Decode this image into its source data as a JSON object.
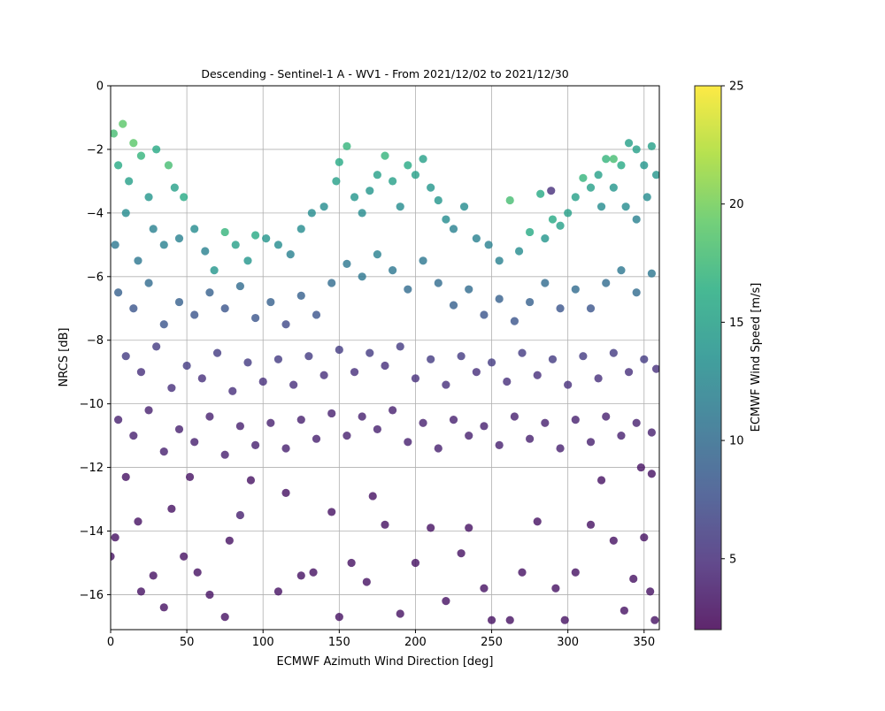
{
  "chart_data": {
    "type": "scatter",
    "title": "Descending - Sentinel-1 A - WV1 - From 2021/12/02 to 2021/12/30",
    "xlabel": "ECMWF Azimuth Wind Direction [deg]",
    "ylabel": "NRCS [dB]",
    "xlim": [
      0,
      360
    ],
    "ylim": [
      -17.1,
      0
    ],
    "xticks": [
      "0",
      "50",
      "100",
      "150",
      "200",
      "250",
      "300",
      "350"
    ],
    "yticks": [
      "0",
      "−2",
      "−4",
      "−6",
      "−8",
      "−10",
      "−12",
      "−14",
      "−16"
    ],
    "grid": true,
    "colormap": "viridis",
    "marker_alpha": 0.8,
    "colorbar": {
      "label": "ECMWF Wind Speed [m/s]",
      "range": [
        2,
        25
      ],
      "ticks": [
        "5",
        "10",
        "15",
        "20",
        "25"
      ]
    },
    "points": [
      [
        2,
        -1.5,
        18
      ],
      [
        8,
        -1.2,
        19
      ],
      [
        15,
        -1.8,
        19
      ],
      [
        5,
        -2.5,
        16
      ],
      [
        20,
        -2.2,
        17
      ],
      [
        12,
        -3.0,
        15
      ],
      [
        25,
        -3.5,
        14
      ],
      [
        30,
        -2.0,
        16
      ],
      [
        38,
        -2.5,
        18
      ],
      [
        42,
        -3.2,
        15
      ],
      [
        48,
        -3.5,
        16
      ],
      [
        10,
        -4.0,
        13
      ],
      [
        3,
        -5.0,
        11
      ],
      [
        18,
        -5.5,
        11
      ],
      [
        28,
        -4.5,
        12
      ],
      [
        35,
        -5.0,
        12
      ],
      [
        45,
        -4.8,
        12
      ],
      [
        55,
        -4.5,
        13
      ],
      [
        62,
        -5.2,
        12
      ],
      [
        68,
        -5.8,
        14
      ],
      [
        75,
        -4.6,
        17
      ],
      [
        82,
        -5.0,
        15
      ],
      [
        90,
        -5.5,
        14
      ],
      [
        95,
        -4.7,
        16
      ],
      [
        102,
        -4.8,
        14
      ],
      [
        110,
        -5.0,
        13
      ],
      [
        118,
        -5.3,
        12
      ],
      [
        125,
        -4.5,
        13
      ],
      [
        132,
        -4.0,
        13
      ],
      [
        140,
        -3.8,
        13
      ],
      [
        148,
        -3.0,
        15
      ],
      [
        150,
        -2.4,
        16
      ],
      [
        155,
        -1.9,
        17
      ],
      [
        160,
        -3.5,
        14
      ],
      [
        165,
        -4.0,
        13
      ],
      [
        170,
        -3.3,
        14
      ],
      [
        175,
        -2.8,
        15
      ],
      [
        180,
        -2.2,
        17
      ],
      [
        185,
        -3.0,
        15
      ],
      [
        190,
        -3.8,
        13
      ],
      [
        195,
        -2.5,
        16
      ],
      [
        200,
        -2.8,
        15
      ],
      [
        205,
        -2.3,
        15
      ],
      [
        210,
        -3.2,
        14
      ],
      [
        215,
        -3.6,
        14
      ],
      [
        220,
        -4.2,
        13
      ],
      [
        225,
        -4.5,
        12
      ],
      [
        232,
        -3.8,
        13
      ],
      [
        240,
        -4.8,
        12
      ],
      [
        248,
        -5.0,
        12
      ],
      [
        255,
        -5.5,
        12
      ],
      [
        262,
        -3.6,
        18
      ],
      [
        268,
        -5.2,
        13
      ],
      [
        275,
        -4.6,
        16
      ],
      [
        282,
        -3.4,
        16
      ],
      [
        285,
        -4.8,
        14
      ],
      [
        290,
        -4.2,
        16
      ],
      [
        295,
        -4.4,
        15
      ],
      [
        300,
        -4.0,
        15
      ],
      [
        305,
        -3.5,
        15
      ],
      [
        310,
        -2.9,
        17
      ],
      [
        315,
        -3.2,
        15
      ],
      [
        320,
        -2.8,
        15
      ],
      [
        325,
        -2.3,
        17
      ],
      [
        330,
        -2.3,
        18
      ],
      [
        335,
        -2.5,
        16
      ],
      [
        340,
        -1.8,
        15
      ],
      [
        345,
        -2.0,
        15
      ],
      [
        350,
        -2.5,
        14
      ],
      [
        355,
        -1.9,
        15
      ],
      [
        358,
        -2.8,
        14
      ],
      [
        352,
        -3.5,
        13
      ],
      [
        345,
        -4.2,
        12
      ],
      [
        338,
        -3.8,
        13
      ],
      [
        330,
        -3.2,
        14
      ],
      [
        322,
        -3.8,
        13
      ],
      [
        289,
        -3.3,
        5
      ],
      [
        5,
        -6.5,
        9
      ],
      [
        15,
        -7.0,
        8
      ],
      [
        25,
        -6.2,
        10
      ],
      [
        35,
        -7.5,
        8
      ],
      [
        45,
        -6.8,
        9
      ],
      [
        55,
        -7.2,
        8
      ],
      [
        65,
        -6.5,
        9
      ],
      [
        75,
        -7.0,
        8
      ],
      [
        85,
        -6.3,
        10
      ],
      [
        95,
        -7.3,
        8
      ],
      [
        105,
        -6.8,
        9
      ],
      [
        115,
        -7.5,
        7
      ],
      [
        125,
        -6.6,
        9
      ],
      [
        135,
        -7.2,
        8
      ],
      [
        145,
        -6.2,
        10
      ],
      [
        155,
        -5.6,
        11
      ],
      [
        165,
        -6.0,
        11
      ],
      [
        175,
        -5.3,
        12
      ],
      [
        185,
        -5.8,
        11
      ],
      [
        195,
        -6.4,
        10
      ],
      [
        205,
        -5.5,
        11
      ],
      [
        215,
        -6.2,
        10
      ],
      [
        225,
        -6.9,
        9
      ],
      [
        235,
        -6.4,
        10
      ],
      [
        245,
        -7.2,
        8
      ],
      [
        255,
        -6.7,
        9
      ],
      [
        265,
        -7.4,
        8
      ],
      [
        275,
        -6.8,
        9
      ],
      [
        285,
        -6.2,
        10
      ],
      [
        295,
        -7.0,
        8
      ],
      [
        305,
        -6.4,
        10
      ],
      [
        315,
        -7.0,
        8
      ],
      [
        325,
        -6.2,
        10
      ],
      [
        335,
        -5.8,
        11
      ],
      [
        345,
        -6.5,
        10
      ],
      [
        355,
        -5.9,
        11
      ],
      [
        10,
        -8.5,
        6
      ],
      [
        20,
        -9.0,
        5
      ],
      [
        30,
        -8.2,
        6
      ],
      [
        40,
        -9.5,
        5
      ],
      [
        50,
        -8.8,
        6
      ],
      [
        60,
        -9.2,
        5
      ],
      [
        70,
        -8.4,
        6
      ],
      [
        80,
        -9.6,
        5
      ],
      [
        90,
        -8.7,
        6
      ],
      [
        100,
        -9.3,
        5
      ],
      [
        110,
        -8.6,
        6
      ],
      [
        120,
        -9.4,
        5
      ],
      [
        130,
        -8.5,
        6
      ],
      [
        140,
        -9.1,
        5
      ],
      [
        150,
        -8.3,
        6
      ],
      [
        160,
        -9.0,
        5
      ],
      [
        170,
        -8.4,
        6
      ],
      [
        180,
        -8.8,
        5
      ],
      [
        190,
        -8.2,
        6
      ],
      [
        200,
        -9.2,
        5
      ],
      [
        210,
        -8.6,
        6
      ],
      [
        220,
        -9.4,
        5
      ],
      [
        230,
        -8.5,
        6
      ],
      [
        240,
        -9.0,
        5
      ],
      [
        250,
        -8.7,
        6
      ],
      [
        260,
        -9.3,
        5
      ],
      [
        270,
        -8.4,
        6
      ],
      [
        280,
        -9.1,
        5
      ],
      [
        290,
        -8.6,
        6
      ],
      [
        300,
        -9.4,
        5
      ],
      [
        310,
        -8.5,
        6
      ],
      [
        320,
        -9.2,
        5
      ],
      [
        330,
        -8.4,
        6
      ],
      [
        340,
        -9.0,
        5
      ],
      [
        350,
        -8.6,
        6
      ],
      [
        358,
        -8.9,
        5
      ],
      [
        5,
        -10.5,
        4
      ],
      [
        15,
        -11.0,
        4
      ],
      [
        25,
        -10.2,
        4
      ],
      [
        35,
        -11.5,
        4
      ],
      [
        45,
        -10.8,
        4
      ],
      [
        55,
        -11.2,
        4
      ],
      [
        65,
        -10.4,
        4
      ],
      [
        75,
        -11.6,
        4
      ],
      [
        85,
        -10.7,
        4
      ],
      [
        95,
        -11.3,
        4
      ],
      [
        105,
        -10.6,
        4
      ],
      [
        115,
        -11.4,
        4
      ],
      [
        125,
        -10.5,
        4
      ],
      [
        135,
        -11.1,
        4
      ],
      [
        145,
        -10.3,
        4
      ],
      [
        155,
        -11.0,
        4
      ],
      [
        165,
        -10.4,
        4
      ],
      [
        175,
        -10.8,
        4
      ],
      [
        185,
        -10.2,
        4
      ],
      [
        195,
        -11.2,
        4
      ],
      [
        205,
        -10.6,
        4
      ],
      [
        215,
        -11.4,
        4
      ],
      [
        225,
        -10.5,
        4
      ],
      [
        235,
        -11.0,
        4
      ],
      [
        245,
        -10.7,
        4
      ],
      [
        255,
        -11.3,
        4
      ],
      [
        265,
        -10.4,
        4
      ],
      [
        275,
        -11.1,
        4
      ],
      [
        285,
        -10.6,
        4
      ],
      [
        295,
        -11.4,
        4
      ],
      [
        305,
        -10.5,
        4
      ],
      [
        315,
        -11.2,
        4
      ],
      [
        325,
        -10.4,
        4
      ],
      [
        335,
        -11.0,
        4
      ],
      [
        345,
        -10.6,
        4
      ],
      [
        355,
        -10.9,
        4
      ],
      [
        0,
        -14.8,
        3
      ],
      [
        3,
        -14.2,
        3
      ],
      [
        10,
        -12.3,
        3
      ],
      [
        18,
        -13.7,
        3
      ],
      [
        20,
        -15.9,
        3
      ],
      [
        28,
        -15.4,
        3
      ],
      [
        35,
        -16.4,
        3
      ],
      [
        40,
        -13.3,
        3
      ],
      [
        48,
        -14.8,
        3
      ],
      [
        52,
        -12.3,
        3
      ],
      [
        57,
        -15.3,
        3
      ],
      [
        65,
        -16.0,
        3
      ],
      [
        75,
        -16.7,
        3
      ],
      [
        78,
        -14.3,
        3
      ],
      [
        85,
        -13.5,
        4
      ],
      [
        92,
        -12.4,
        3
      ],
      [
        110,
        -15.9,
        3
      ],
      [
        115,
        -12.8,
        3
      ],
      [
        125,
        -15.4,
        3
      ],
      [
        133,
        -15.3,
        3
      ],
      [
        145,
        -13.4,
        3
      ],
      [
        150,
        -16.7,
        3
      ],
      [
        158,
        -15.0,
        3
      ],
      [
        168,
        -15.6,
        3
      ],
      [
        172,
        -12.9,
        3
      ],
      [
        180,
        -13.8,
        3
      ],
      [
        190,
        -16.6,
        3
      ],
      [
        200,
        -15.0,
        3
      ],
      [
        210,
        -13.9,
        3
      ],
      [
        220,
        -16.2,
        3
      ],
      [
        230,
        -14.7,
        3
      ],
      [
        235,
        -13.9,
        3
      ],
      [
        245,
        -15.8,
        3
      ],
      [
        250,
        -16.8,
        3
      ],
      [
        262,
        -16.8,
        3
      ],
      [
        270,
        -15.3,
        3
      ],
      [
        280,
        -13.7,
        3
      ],
      [
        292,
        -15.8,
        3
      ],
      [
        298,
        -16.8,
        3
      ],
      [
        305,
        -15.3,
        3
      ],
      [
        315,
        -13.8,
        3
      ],
      [
        322,
        -12.4,
        3
      ],
      [
        330,
        -14.3,
        3
      ],
      [
        337,
        -16.5,
        3
      ],
      [
        343,
        -15.5,
        3
      ],
      [
        350,
        -14.2,
        3
      ],
      [
        354,
        -15.9,
        3
      ],
      [
        357,
        -16.8,
        3
      ],
      [
        355,
        -12.2,
        3
      ],
      [
        348,
        -12.0,
        3
      ]
    ]
  }
}
